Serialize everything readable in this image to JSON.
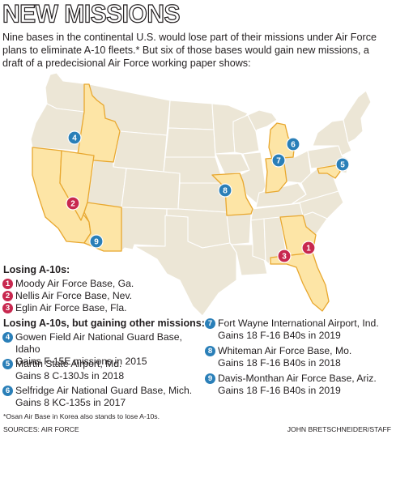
{
  "title": "NEW MISSIONS",
  "intro": "Nine bases in the continental U.S. would lose part of their missions under Air Force plans to eliminate A-10 fleets.* But six of those bases would gain new missions, a draft of a predecisional Air Force working paper shows:",
  "colors": {
    "base_map": "#ece6d6",
    "state_border": "#ffffff",
    "highlight_fill": "#fde5a6",
    "highlight_border": "#e8a72e",
    "losing_marker": "#c8284f",
    "gaining_marker": "#2a7fb8"
  },
  "map": {
    "highlighted_states": [
      "Idaho",
      "California",
      "Nevada",
      "Arizona",
      "Missouri",
      "Indiana",
      "Michigan",
      "Maryland",
      "Georgia",
      "Florida"
    ],
    "markers": [
      {
        "number": "1",
        "kind": "losing"
      },
      {
        "number": "2",
        "kind": "losing"
      },
      {
        "number": "3",
        "kind": "losing"
      },
      {
        "number": "4",
        "kind": "gaining"
      },
      {
        "number": "5",
        "kind": "gaining"
      },
      {
        "number": "6",
        "kind": "gaining"
      },
      {
        "number": "7",
        "kind": "gaining"
      },
      {
        "number": "8",
        "kind": "gaining"
      },
      {
        "number": "9",
        "kind": "gaining"
      }
    ]
  },
  "losing": {
    "heading": "Losing A-10s:",
    "items": [
      {
        "number": "1",
        "name": "Moody Air Force Base, Ga."
      },
      {
        "number": "2",
        "name": "Nellis Air Force Base, Nev."
      },
      {
        "number": "3",
        "name": "Eglin Air Force Base, Fla."
      }
    ]
  },
  "gaining": {
    "heading": "Losing A-10s, but gaining other missions:",
    "items": [
      {
        "number": "4",
        "name": "Gowen Field Air National Guard Base, Idaho",
        "detail": "Gains F-15E missions in 2015"
      },
      {
        "number": "5",
        "name": "Martin State Airport, Md.",
        "detail": "Gains 8 C-130Js in 2018"
      },
      {
        "number": "6",
        "name": "Selfridge Air National Guard Base, Mich.",
        "detail": "Gains 8 KC-135s in 2017"
      },
      {
        "number": "7",
        "name": "Fort Wayne International Airport, Ind.",
        "detail": "Gains 18 F-16 B40s in 2019"
      },
      {
        "number": "8",
        "name": "Whiteman Air Force Base, Mo.",
        "detail": "Gains 18 F-16 B40s in 2018"
      },
      {
        "number": "9",
        "name": "Davis-Monthan Air Force Base, Ariz.",
        "detail": "Gains 18 F-16 B40s in 2019"
      }
    ]
  },
  "footnote": "*Osan Air Base in Korea also stands to lose A-10s.",
  "sources": "SOURCES: AIR FORCE",
  "credit": "JOHN BRETSCHNEIDER/STAFF"
}
